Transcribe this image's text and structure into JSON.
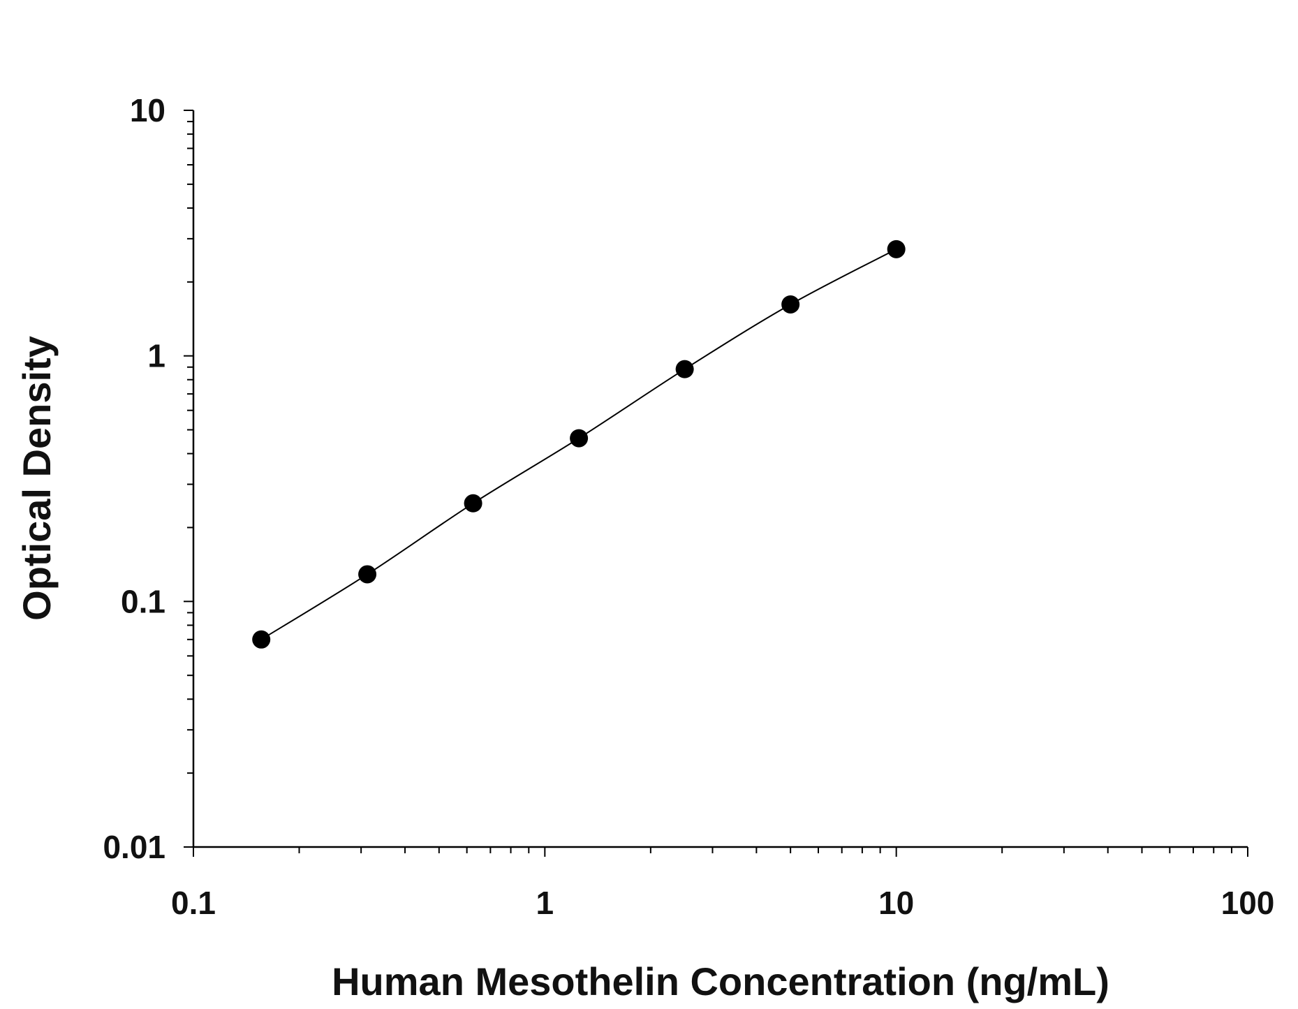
{
  "chart_data": {
    "type": "scatter",
    "title": "",
    "xlabel": "Human Mesothelin Concentration (ng/mL)",
    "ylabel": "Optical Density",
    "x_scale": "log",
    "y_scale": "log",
    "xlim": [
      0.1,
      100
    ],
    "ylim": [
      0.01,
      10
    ],
    "x_ticks": [
      "0.1",
      "1",
      "10",
      "100"
    ],
    "y_ticks": [
      "0.01",
      "0.1",
      "1",
      "10"
    ],
    "grid": false,
    "fit_curve": true,
    "marker_color": "#000000",
    "series": [
      {
        "x": [
          0.156,
          0.3125,
          0.625,
          1.25,
          2.5,
          5,
          10
        ],
        "y": [
          0.07,
          0.129,
          0.251,
          0.462,
          0.883,
          1.62,
          2.72
        ]
      }
    ]
  }
}
